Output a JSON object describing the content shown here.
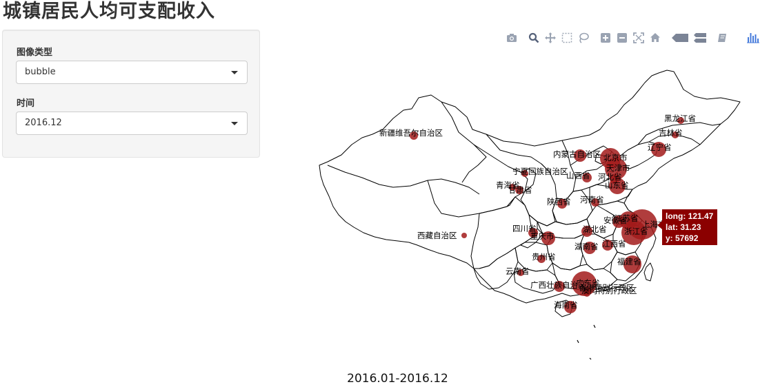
{
  "page": {
    "title": "城镇居民人均可支配收入",
    "period": "2016.01-2016.12"
  },
  "controls": {
    "chart_type_label": "图像类型",
    "chart_type_value": "bubble",
    "time_label": "时间",
    "time_value": "2016.12"
  },
  "modebar": {
    "buttons": [
      "camera-icon",
      "zoom-icon",
      "pan-icon",
      "box-select-icon",
      "lasso-icon",
      "zoom-in-icon",
      "zoom-out-icon",
      "autoscale-icon",
      "reset-icon",
      "hover-closest-icon",
      "hover-compare-icon",
      "toggle-spikelines-icon",
      "plotly-logo-icon"
    ]
  },
  "colors": {
    "bubble": "#a21b1b",
    "tooltip": "#8b0000",
    "modebar_icon": "#9aa3b2",
    "plotly_logo": "#447adb"
  },
  "map": {
    "labels": [
      "新疆维吾尔自治区",
      "西藏自治区",
      "内蒙古自治区",
      "黑龙江省",
      "吉林省",
      "辽宁省",
      "北京市",
      "天津市",
      "河北省",
      "山西省",
      "山东省",
      "宁夏回族自治区",
      "青海省",
      "甘肃省",
      "陕西省",
      "河南省",
      "四川省",
      "重庆市",
      "湖北省",
      "安徽省",
      "江苏省",
      "上海市",
      "浙江省",
      "湖南省",
      "江西省",
      "贵州省",
      "云南省",
      "福建省",
      "广西壮族自治区",
      "广东省",
      "香港特别行政区",
      "澳门特别行政区",
      "海南省"
    ]
  },
  "tooltip": {
    "long": "long: 121.47",
    "lat": "lat: 31.23",
    "y": "y: 57692"
  }
}
